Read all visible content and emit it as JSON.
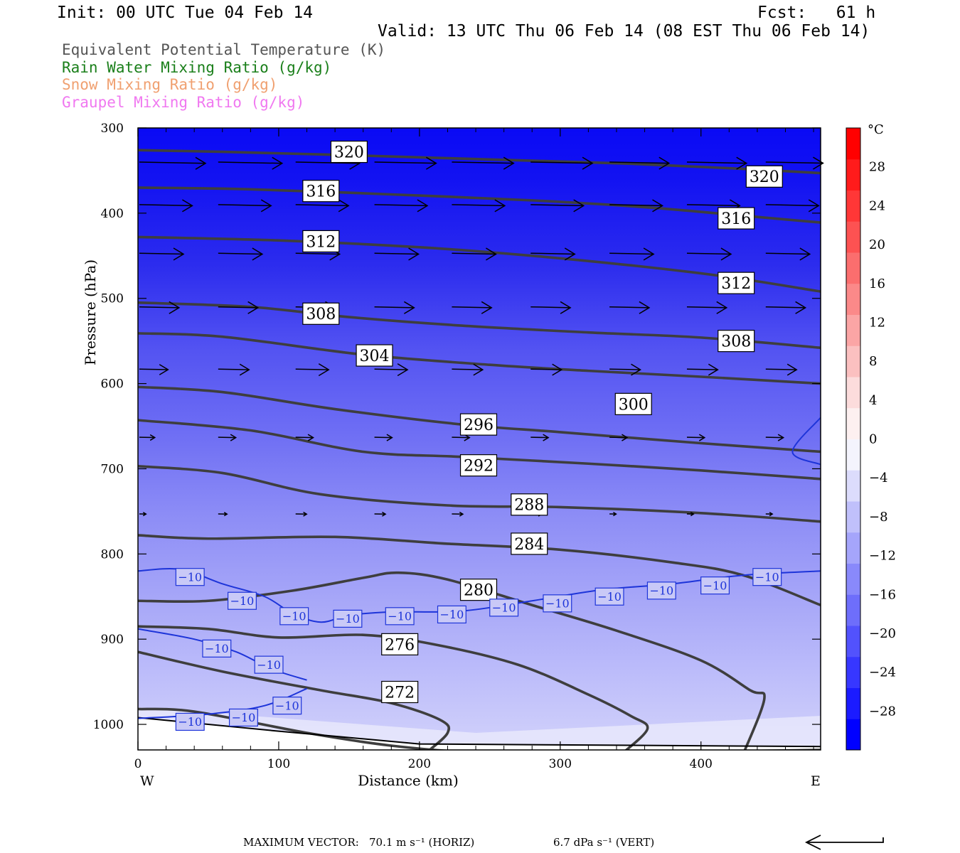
{
  "header": {
    "init": "Init: 00 UTC Tue 04 Feb 14",
    "fcst": "Fcst:   61 h",
    "valid": "Valid: 13 UTC Thu 06 Feb 14 (08 EST Thu 06 Feb 14)"
  },
  "legend": [
    {
      "label": "Equivalent Potential Temperature (K)",
      "color": "#555555"
    },
    {
      "label": "Rain Water Mixing Ratio (g/kg)",
      "color": "#1a7f1a"
    },
    {
      "label": "Snow Mixing Ratio (g/kg)",
      "color": "#f0a070"
    },
    {
      "label": "Graupel Mixing Ratio (g/kg)",
      "color": "#f078f0"
    }
  ],
  "chart_data": {
    "type": "cross-section",
    "xlabel": "Distance (km)",
    "ylabel": "Pressure (hPa)",
    "xlim": [
      0,
      485
    ],
    "ylim": [
      300,
      1030
    ],
    "x_ticks": [
      0,
      100,
      200,
      300,
      400
    ],
    "x_tick_labels": [
      "0",
      "100",
      "200",
      "300",
      "400"
    ],
    "y_ticks": [
      300,
      400,
      500,
      600,
      700,
      800,
      900,
      1000
    ],
    "y_tick_labels": [
      "300",
      "400",
      "500",
      "600",
      "700",
      "800",
      "900",
      "1000"
    ],
    "left_end_label": "W",
    "right_end_label": "E",
    "theta_e_contours": [
      {
        "value": 320,
        "label": "320",
        "points": [
          [
            0,
            326
          ],
          [
            60,
            328
          ],
          [
            150,
            332
          ],
          [
            250,
            337
          ],
          [
            350,
            342
          ],
          [
            430,
            348
          ],
          [
            485,
            353
          ]
        ],
        "labels_at": [
          [
            150,
            328
          ],
          [
            445,
            357
          ]
        ]
      },
      {
        "value": 316,
        "label": "316",
        "points": [
          [
            0,
            370
          ],
          [
            80,
            372
          ],
          [
            180,
            378
          ],
          [
            280,
            385
          ],
          [
            360,
            393
          ],
          [
            430,
            403
          ],
          [
            485,
            411
          ]
        ],
        "labels_at": [
          [
            130,
            374
          ],
          [
            425,
            406
          ]
        ]
      },
      {
        "value": 312,
        "label": "312",
        "points": [
          [
            0,
            428
          ],
          [
            100,
            432
          ],
          [
            200,
            440
          ],
          [
            280,
            450
          ],
          [
            360,
            463
          ],
          [
            420,
            475
          ],
          [
            485,
            492
          ]
        ],
        "labels_at": [
          [
            130,
            433
          ],
          [
            425,
            482
          ]
        ]
      },
      {
        "value": 308,
        "label": "308",
        "points": [
          [
            0,
            505
          ],
          [
            80,
            510
          ],
          [
            150,
            522
          ],
          [
            230,
            532
          ],
          [
            320,
            540
          ],
          [
            400,
            546
          ],
          [
            485,
            558
          ]
        ],
        "labels_at": [
          [
            130,
            518
          ],
          [
            425,
            550
          ]
        ]
      },
      {
        "value": 304,
        "label": "304",
        "points": [
          [
            0,
            541
          ],
          [
            60,
            545
          ],
          [
            160,
            566
          ],
          [
            250,
            578
          ],
          [
            320,
            585
          ],
          [
            400,
            592
          ],
          [
            485,
            600
          ]
        ],
        "labels_at": [
          [
            168,
            567
          ]
        ]
      },
      {
        "value": 300,
        "label": "300",
        "points": [
          [
            0,
            604
          ],
          [
            60,
            610
          ],
          [
            140,
            630
          ],
          [
            230,
            648
          ],
          [
            300,
            657
          ],
          [
            400,
            670
          ],
          [
            485,
            680
          ]
        ],
        "labels_at": [
          [
            352,
            624
          ]
        ]
      },
      {
        "value": 296,
        "label": "296",
        "points": [
          [
            0,
            643
          ],
          [
            80,
            655
          ],
          [
            160,
            680
          ],
          [
            230,
            686
          ],
          [
            320,
            694
          ],
          [
            400,
            702
          ],
          [
            485,
            712
          ]
        ],
        "labels_at": [
          [
            242,
            648
          ]
        ]
      },
      {
        "value": 292,
        "label": "292",
        "points": [
          [
            0,
            697
          ],
          [
            60,
            705
          ],
          [
            130,
            730
          ],
          [
            220,
            743
          ],
          [
            300,
            745
          ],
          [
            400,
            752
          ],
          [
            485,
            762
          ]
        ],
        "labels_at": [
          [
            242,
            696
          ]
        ]
      },
      {
        "value": 288,
        "label": "288",
        "points": [
          [
            0,
            778
          ],
          [
            50,
            782
          ],
          [
            140,
            780
          ],
          [
            220,
            788
          ],
          [
            300,
            795
          ],
          [
            380,
            810
          ],
          [
            430,
            825
          ],
          [
            485,
            860
          ]
        ],
        "labels_at": [
          [
            278,
            742
          ]
        ]
      },
      {
        "value": 284,
        "label": "284",
        "points": [
          [
            0,
            855
          ],
          [
            50,
            855
          ],
          [
            110,
            843
          ],
          [
            160,
            828
          ],
          [
            185,
            822
          ],
          [
            220,
            830
          ],
          [
            280,
            860
          ],
          [
            340,
            890
          ],
          [
            400,
            925
          ],
          [
            435,
            960
          ],
          [
            445,
            970
          ],
          [
            430,
            1035
          ]
        ],
        "labels_at": [
          [
            278,
            788
          ]
        ]
      },
      {
        "value": 280,
        "label": "280",
        "points": [
          [
            0,
            885
          ],
          [
            50,
            888
          ],
          [
            100,
            898
          ],
          [
            160,
            895
          ],
          [
            210,
            906
          ],
          [
            270,
            930
          ],
          [
            320,
            965
          ],
          [
            350,
            990
          ],
          [
            362,
            1005
          ],
          [
            345,
            1033
          ]
        ],
        "labels_at": [
          [
            242,
            842
          ]
        ]
      },
      {
        "value": 276,
        "label": "276",
        "points": [
          [
            0,
            915
          ],
          [
            60,
            938
          ],
          [
            130,
            960
          ],
          [
            180,
            975
          ],
          [
            215,
            995
          ],
          [
            220,
            1010
          ],
          [
            205,
            1033
          ]
        ],
        "labels_at": [
          [
            186,
            906
          ]
        ]
      },
      {
        "value": 272,
        "label": "272",
        "points": [
          [
            0,
            982
          ],
          [
            40,
            985
          ],
          [
            120,
            1010
          ],
          [
            180,
            1025
          ],
          [
            240,
            1033
          ],
          [
            300,
            1033
          ],
          [
            400,
            1032
          ],
          [
            485,
            1030
          ]
        ],
        "labels_at": [
          [
            186,
            962
          ]
        ]
      }
    ],
    "temperature_contours": [
      {
        "value": -10,
        "label": "−10",
        "color": "#1d34d9",
        "points": [
          [
            0,
            820
          ],
          [
            30,
            818
          ],
          [
            60,
            835
          ],
          [
            90,
            850
          ],
          [
            110,
            870
          ],
          [
            130,
            880
          ],
          [
            150,
            872
          ],
          [
            180,
            868
          ],
          [
            230,
            867
          ],
          [
            280,
            855
          ],
          [
            330,
            842
          ],
          [
            380,
            835
          ],
          [
            430,
            825
          ],
          [
            485,
            820
          ]
        ],
        "labels_at": [
          [
            37,
            827
          ],
          [
            74,
            855
          ],
          [
            111,
            873
          ],
          [
            149,
            876
          ],
          [
            186,
            873
          ],
          [
            223,
            871
          ],
          [
            260,
            863
          ],
          [
            298,
            858
          ],
          [
            335,
            850
          ],
          [
            372,
            843
          ],
          [
            410,
            837
          ],
          [
            447,
            827
          ]
        ]
      },
      {
        "value": -10,
        "label": "−10",
        "color": "#1d34d9",
        "points": [
          [
            0,
            888
          ],
          [
            40,
            900
          ],
          [
            70,
            915
          ],
          [
            95,
            935
          ],
          [
            120,
            948
          ]
        ],
        "labels_at": [
          [
            56,
            911
          ],
          [
            93,
            930
          ],
          [
            106,
            978
          ]
        ]
      },
      {
        "value": -10,
        "label": "−10",
        "color": "#1d34d9",
        "points": [
          [
            0,
            993
          ],
          [
            50,
            988
          ],
          [
            90,
            978
          ],
          [
            120,
            958
          ]
        ],
        "labels_at": [
          [
            37,
            997
          ],
          [
            75,
            992
          ]
        ]
      },
      {
        "value": -10,
        "label": "",
        "color": "#1d34d9",
        "points": [
          [
            485,
            640
          ],
          [
            465,
            680
          ],
          [
            485,
            695
          ]
        ],
        "labels_at": []
      }
    ],
    "wind_vectors": [
      {
        "p": 340,
        "row": [
          [
            0,
            60
          ],
          [
            56,
            58
          ],
          [
            111,
            58
          ],
          [
            167,
            56
          ],
          [
            222,
            56
          ],
          [
            278,
            56
          ],
          [
            334,
            54
          ],
          [
            389,
            54
          ],
          [
            445,
            52
          ]
        ]
      },
      {
        "p": 390,
        "row": [
          [
            0,
            48
          ],
          [
            56,
            48
          ],
          [
            111,
            48
          ],
          [
            167,
            48
          ],
          [
            222,
            48
          ],
          [
            278,
            48
          ],
          [
            334,
            48
          ],
          [
            389,
            48
          ],
          [
            445,
            48
          ]
        ]
      },
      {
        "p": 447,
        "row": [
          [
            0,
            40
          ],
          [
            56,
            40
          ],
          [
            111,
            40
          ],
          [
            167,
            40
          ],
          [
            222,
            40
          ],
          [
            278,
            40
          ],
          [
            334,
            40
          ],
          [
            389,
            40
          ],
          [
            445,
            40
          ]
        ]
      },
      {
        "p": 510,
        "row": [
          [
            0,
            36
          ],
          [
            56,
            36
          ],
          [
            111,
            36
          ],
          [
            167,
            36
          ],
          [
            222,
            36
          ],
          [
            278,
            36
          ],
          [
            334,
            36
          ],
          [
            389,
            36
          ],
          [
            445,
            36
          ]
        ]
      },
      {
        "p": 583,
        "row": [
          [
            0,
            26
          ],
          [
            56,
            28
          ],
          [
            111,
            30
          ],
          [
            167,
            30
          ],
          [
            222,
            28
          ],
          [
            278,
            28
          ],
          [
            334,
            28
          ],
          [
            389,
            28
          ],
          [
            445,
            28
          ]
        ]
      },
      {
        "p": 663,
        "row": [
          [
            0,
            14
          ],
          [
            56,
            16
          ],
          [
            111,
            16
          ],
          [
            167,
            16
          ],
          [
            222,
            16
          ],
          [
            278,
            16
          ],
          [
            334,
            16
          ],
          [
            389,
            16
          ],
          [
            445,
            16
          ]
        ]
      },
      {
        "p": 753,
        "row": [
          [
            0,
            6
          ],
          [
            56,
            8
          ],
          [
            111,
            10
          ],
          [
            167,
            10
          ],
          [
            222,
            10
          ],
          [
            278,
            10
          ],
          [
            334,
            6
          ],
          [
            389,
            6
          ],
          [
            445,
            6
          ]
        ]
      }
    ],
    "colorbar": {
      "unit": "°C",
      "min": -32,
      "max": 32,
      "step": 4,
      "labels": [
        "28",
        "24",
        "20",
        "16",
        "12",
        "8",
        "4",
        "0",
        "−4",
        "−8",
        "−12",
        "−16",
        "−20",
        "−24",
        "−28"
      ],
      "label_values": [
        28,
        24,
        20,
        16,
        12,
        8,
        4,
        0,
        -4,
        -8,
        -12,
        -16,
        -20,
        -24,
        -28
      ],
      "colors_cold": [
        "#0000ff",
        "#1b1bff",
        "#3737ff",
        "#5252fd",
        "#6e6efb",
        "#8989fb",
        "#a5a5fb",
        "#c0c0fb",
        "#dcdcfc",
        "#f4f4fd"
      ],
      "colors_warm": [
        "#fdf0f0",
        "#fcdcdc",
        "#fbc0c0",
        "#fba5a5",
        "#fb8989",
        "#fb6e6e",
        "#fd5252",
        "#ff3737",
        "#ff1b1b",
        "#ff0000"
      ]
    }
  },
  "footer": {
    "max_vector_label": "MAXIMUM VECTOR:",
    "horiz": "70.1 m s⁻¹ (HORIZ)",
    "vert": "6.7 dPa s⁻¹ (VERT)"
  }
}
